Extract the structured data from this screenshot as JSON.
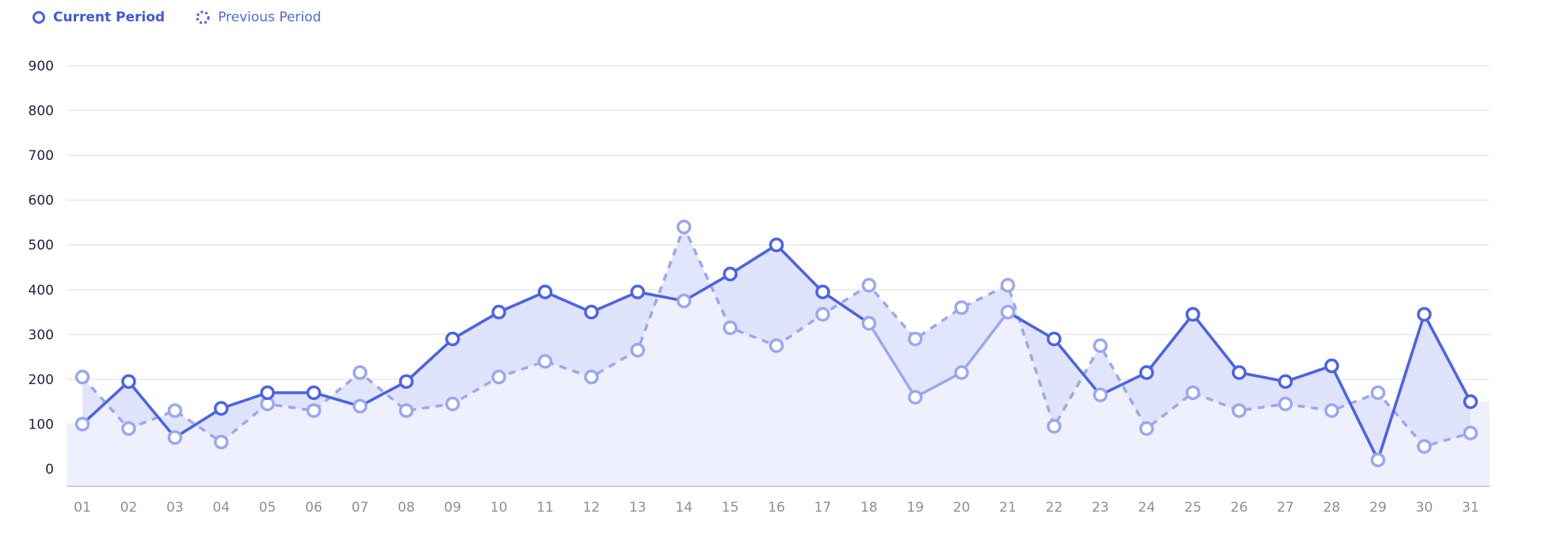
{
  "legend": {
    "current_label": "Current Period",
    "previous_label": "Previous Period"
  },
  "colors": {
    "current": "#4a63e6",
    "previous": "#9aa7f0",
    "band_fill": "#dbe0fb",
    "base_fill": "#eef1fd",
    "grid": "#e9e9ef",
    "ytick": "#1f2340",
    "xtick": "#8c8f99"
  },
  "chart_data": {
    "type": "line",
    "categories": [
      "01",
      "02",
      "03",
      "04",
      "05",
      "06",
      "07",
      "08",
      "09",
      "10",
      "11",
      "12",
      "13",
      "14",
      "15",
      "16",
      "17",
      "18",
      "19",
      "20",
      "21",
      "22",
      "23",
      "24",
      "25",
      "26",
      "27",
      "28",
      "29",
      "30",
      "31"
    ],
    "series": [
      {
        "name": "Current Period",
        "values": [
          100,
          195,
          70,
          135,
          170,
          170,
          140,
          195,
          290,
          350,
          395,
          350,
          395,
          375,
          435,
          500,
          395,
          325,
          160,
          215,
          350,
          290,
          165,
          215,
          345,
          215,
          195,
          230,
          20,
          345,
          150
        ],
        "style": "solid"
      },
      {
        "name": "Previous Period",
        "values": [
          205,
          90,
          130,
          60,
          145,
          130,
          215,
          130,
          145,
          205,
          240,
          205,
          265,
          540,
          315,
          275,
          345,
          410,
          290,
          360,
          410,
          95,
          275,
          90,
          170,
          130,
          145,
          130,
          170,
          50,
          80
        ],
        "style": "dashed"
      }
    ],
    "secondary_line": {
      "values": [
        100,
        195,
        70,
        135,
        170,
        170,
        140,
        195,
        290,
        350,
        395,
        350,
        395,
        375,
        435,
        500,
        395,
        325,
        160,
        215,
        350,
        290,
        165,
        215,
        345,
        215,
        195,
        230,
        20,
        345,
        150
      ]
    },
    "yticks": [
      "0",
      "100",
      "200",
      "300",
      "400",
      "500",
      "600",
      "700",
      "800",
      "900"
    ],
    "ylim": [
      0,
      900
    ],
    "grid": true,
    "legend_position": "top-left"
  }
}
